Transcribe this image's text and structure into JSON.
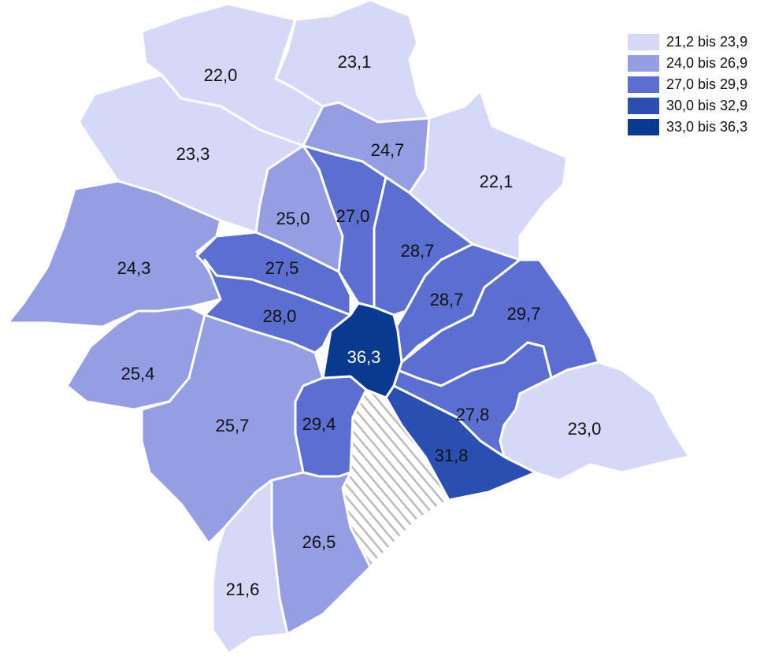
{
  "regions": [
    {
      "label": "22,0",
      "color": "#d6d8f8"
    },
    {
      "label": "23,1",
      "color": "#d6d8f8"
    },
    {
      "label": "23,3",
      "color": "#d6d8f8"
    },
    {
      "label": "24,7",
      "color": "#959de3"
    },
    {
      "label": "22,1",
      "color": "#d6d8f8"
    },
    {
      "label": "25,0",
      "color": "#959de3"
    },
    {
      "label": "27,0",
      "color": "#5b6fd0"
    },
    {
      "label": "24,3",
      "color": "#959de3"
    },
    {
      "label": "27,5",
      "color": "#5b6fd0"
    },
    {
      "label": "28,0",
      "color": "#5b6fd0"
    },
    {
      "label": "28,7",
      "color": "#5b6fd0"
    },
    {
      "label": "28,7",
      "color": "#5b6fd0"
    },
    {
      "label": "29,7",
      "color": "#5b6fd0"
    },
    {
      "label": "36,3",
      "color": "#0a3a8f"
    },
    {
      "label": "25,4",
      "color": "#959de3"
    },
    {
      "label": "25,7",
      "color": "#959de3"
    },
    {
      "label": "29,4",
      "color": "#5b6fd0"
    },
    {
      "label": "31,8",
      "color": "#2b4eb1"
    },
    {
      "label": "27,8",
      "color": "#5b6fd0"
    },
    {
      "label": "23,0",
      "color": "#d6d8f8"
    },
    {
      "label": "26,5",
      "color": "#959de3"
    },
    {
      "label": "21,6",
      "color": "#d6d8f8"
    }
  ],
  "legend": [
    {
      "label": "21,2 bis 23,9",
      "color": "#d6d8f8"
    },
    {
      "label": "24,0 bis 26,9",
      "color": "#959de3"
    },
    {
      "label": "27,0 bis 29,9",
      "color": "#5b6fd0"
    },
    {
      "label": "30,0 bis 32,9",
      "color": "#2b4eb1"
    },
    {
      "label": "33,0 bis 36,3",
      "color": "#0a3a8f"
    }
  ]
}
